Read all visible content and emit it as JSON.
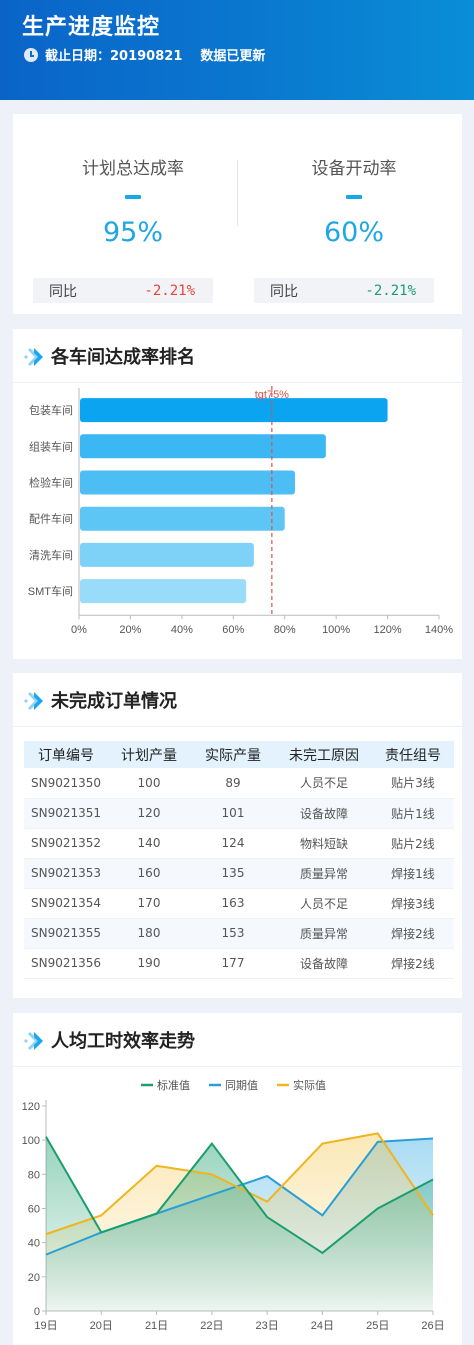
{
  "header": {
    "title": "生产进度监控",
    "date_text": "截止日期：20190821",
    "status_text": "数据已更新"
  },
  "kpis": [
    {
      "title": "计划总达成率",
      "value": "95%",
      "compare_label": "同比",
      "compare_value": "-2.21%",
      "compare_color": "#e6453c"
    },
    {
      "title": "设备开动率",
      "value": "60%",
      "compare_label": "同比",
      "compare_value": "-2.21%",
      "compare_color": "#17a06a"
    }
  ],
  "ranking": {
    "title": "各车间达成率排名",
    "icon": "double-chevron-icon"
  },
  "orders": {
    "title": "未完成订单情况",
    "columns": [
      "订单编号",
      "计划产量",
      "实际产量",
      "未完工原因",
      "责任组号"
    ],
    "rows": [
      [
        "SN9021350",
        "100",
        "89",
        "人员不足",
        "贴片3线"
      ],
      [
        "SN9021351",
        "120",
        "101",
        "设备故障",
        "贴片1线"
      ],
      [
        "SN9021352",
        "140",
        "124",
        "物料短缺",
        "贴片2线"
      ],
      [
        "SN9021353",
        "160",
        "135",
        "质量异常",
        "焊接1线"
      ],
      [
        "SN9021354",
        "170",
        "163",
        "人员不足",
        "焊接3线"
      ],
      [
        "SN9021355",
        "180",
        "153",
        "质量异常",
        "焊接2线"
      ],
      [
        "SN9021356",
        "190",
        "177",
        "设备故障",
        "焊接2线"
      ]
    ]
  },
  "trend": {
    "title": "人均工时效率走势"
  },
  "colors": {
    "accent": "#1ea7e4",
    "header": "#0a6fca",
    "bar": "#1aa6f0",
    "target_line": "#d9534f"
  },
  "chart_data": [
    {
      "type": "bar",
      "orientation": "horizontal",
      "categories": [
        "包装车间",
        "组装车间",
        "检验车间",
        "配件车间",
        "清洗车间",
        "SMT车间"
      ],
      "values": [
        120,
        96,
        84,
        80,
        68,
        65
      ],
      "xlim": [
        0,
        140
      ],
      "xticks": [
        "0%",
        "20%",
        "40%",
        "60%",
        "80%",
        "100%",
        "120%",
        "140%"
      ],
      "target": {
        "value": 75,
        "label": "tgt75%"
      },
      "grid": false
    },
    {
      "type": "area",
      "x": [
        "19日",
        "20日",
        "21日",
        "22日",
        "23日",
        "24日",
        "25日",
        "26日"
      ],
      "ylim": [
        0,
        120
      ],
      "yticks": [
        0,
        20,
        40,
        60,
        80,
        100,
        120
      ],
      "legend_position": "top-center",
      "series": [
        {
          "name": "标准值",
          "color": "#1a9e6e",
          "values": [
            102,
            46,
            57,
            98,
            55,
            34,
            60,
            77
          ]
        },
        {
          "name": "同期值",
          "color": "#2a9fd6",
          "values": [
            33,
            46,
            57,
            68,
            79,
            56,
            99,
            101
          ]
        },
        {
          "name": "实际值",
          "color": "#f0b41e",
          "values": [
            45,
            56,
            85,
            80,
            64,
            98,
            104,
            56
          ]
        }
      ]
    }
  ]
}
